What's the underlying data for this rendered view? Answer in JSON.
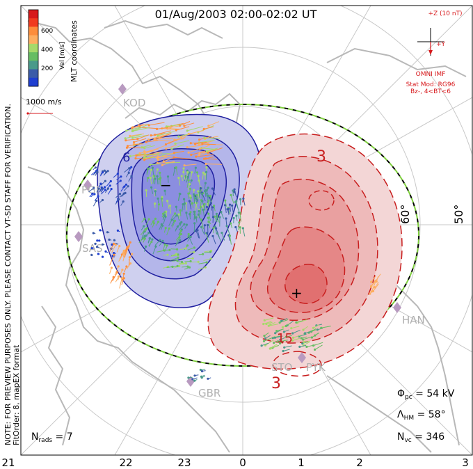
{
  "title": "01/Aug/2003 02:00-02:02 UT",
  "coord_label": "MLT coordinates",
  "velocity_scale": {
    "label": "Vel [m/s]",
    "ticks": [
      "600",
      "400",
      "200"
    ],
    "colors": [
      "#d7191c",
      "#f03b20",
      "#fd8d3c",
      "#fdae61",
      "#a6d96a",
      "#66bd63",
      "#4a9a8a",
      "#3b5ba8",
      "#1f3fd0"
    ]
  },
  "reference_vector_label": "1000 m/s",
  "imf": {
    "clock_label": "+Z (10 nT)",
    "y_label": "+Y",
    "source": "OMNI IMF",
    "model_line1": "Stat Mod: RG96",
    "model_line2": "Bz-, 4<BT<6"
  },
  "latitude_labels": [
    "60°",
    "50°"
  ],
  "mlt_labels": [
    "21",
    "22",
    "23",
    "0",
    "1",
    "2",
    "3"
  ],
  "stations": [
    "KOD",
    "PGR",
    "SAS",
    "HAN",
    "STO",
    "PYK",
    "GBR"
  ],
  "contour_labels": {
    "neg": "−",
    "pos": "+",
    "six": "6",
    "three_top": "3",
    "fifteen": "15",
    "three_bottom": "3"
  },
  "notes": {
    "line1": "NOTE: FOR PREVIEW PURPOSES ONLY. PLEASE CONTACT VT-SD STAFF FOR VERIFICATION.",
    "line2": "FitOrder: 8, mapEX format"
  },
  "stats": {
    "phi_pc_label": "Φ",
    "phi_pc_sub": "pc",
    "phi_pc_value": " = 54 kV",
    "lambda_label": "Λ",
    "lambda_sub": "HM",
    "lambda_value": " = 58°",
    "nvc_label": "N",
    "nvc_sub": "vc",
    "nvc_value": " = 346",
    "nrads_label": "N",
    "nrads_sub": "rads",
    "nrads_value": " = 7"
  },
  "colors": {
    "negative_cell": "#3535c0",
    "positive_cell": "#d42020",
    "land": "#b8b8b8",
    "boundary_dash": "#7fcf3f"
  }
}
